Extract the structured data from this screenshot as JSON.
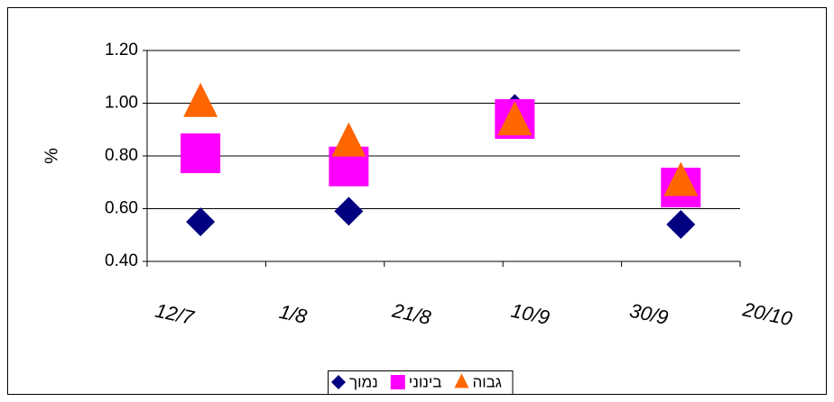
{
  "chart_data": {
    "type": "scatter",
    "y_label": "%",
    "x": [
      202,
      227,
      255,
      283
    ],
    "series": [
      {
        "name": "נמוך",
        "color": "#000080",
        "marker": "diamond",
        "values": [
          0.55,
          0.59,
          0.98,
          0.54
        ]
      },
      {
        "name": "בינוני",
        "color": "#ff00ff",
        "marker": "square",
        "values": [
          0.81,
          0.76,
          0.94,
          0.68
        ]
      },
      {
        "name": "גבוה",
        "color": "#ff6600",
        "marker": "triangle",
        "values": [
          1.0,
          0.85,
          0.93,
          0.7
        ]
      }
    ],
    "xlim": [
      193,
      293
    ],
    "xticks": [
      {
        "value": 193,
        "label": "12/7"
      },
      {
        "value": 213,
        "label": "1/8"
      },
      {
        "value": 233,
        "label": "21/8"
      },
      {
        "value": 253,
        "label": "10/9"
      },
      {
        "value": 273,
        "label": "30/9"
      },
      {
        "value": 293,
        "label": "20/10"
      }
    ],
    "ylim": [
      0.4,
      1.2
    ],
    "yticks": [
      {
        "value": 0.4,
        "label": "0.40"
      },
      {
        "value": 0.6,
        "label": "0.60"
      },
      {
        "value": 0.8,
        "label": "0.80"
      },
      {
        "value": 1.0,
        "label": "1.00"
      },
      {
        "value": 1.2,
        "label": "1.20"
      }
    ],
    "grid": true,
    "legend": "bottom"
  }
}
